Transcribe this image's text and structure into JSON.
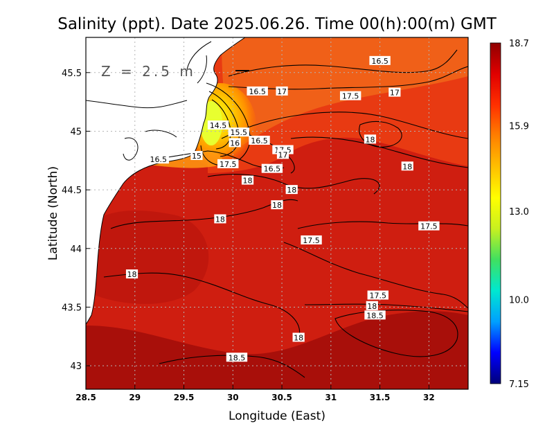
{
  "chart_data": {
    "type": "heatmap",
    "title": "Salinity (ppt). Date 2025.06.26. Time 00(h):00(m) GMT",
    "xlabel": "Longitude (East)",
    "ylabel": "Latitude (North)",
    "depth_label": "Z = 2.5 m",
    "xlim": [
      28.5,
      32.4
    ],
    "ylim": [
      42.8,
      45.8
    ],
    "x_ticks": [
      {
        "value": 28.5,
        "label": "28.5"
      },
      {
        "value": 29,
        "label": "29"
      },
      {
        "value": 29.5,
        "label": "29.5"
      },
      {
        "value": 30,
        "label": "30"
      },
      {
        "value": 30.5,
        "label": "30.5"
      },
      {
        "value": 31,
        "label": "31"
      },
      {
        "value": 31.5,
        "label": "31.5"
      },
      {
        "value": 32,
        "label": "32"
      }
    ],
    "y_ticks": [
      {
        "value": 43,
        "label": "43"
      },
      {
        "value": 43.5,
        "label": "43.5"
      },
      {
        "value": 44,
        "label": "44"
      },
      {
        "value": 44.5,
        "label": "44.5"
      },
      {
        "value": 45,
        "label": "45"
      },
      {
        "value": 45.5,
        "label": "45.5"
      }
    ],
    "grid": true,
    "colorbar": {
      "min": 7.15,
      "max": 18.7,
      "ticks": [
        {
          "value": 18.7,
          "label": "18.7"
        },
        {
          "value": 15.9,
          "label": "15.9"
        },
        {
          "value": 13.0,
          "label": "13.0"
        },
        {
          "value": 10.0,
          "label": "10.0"
        },
        {
          "value": 7.15,
          "label": "7.15"
        }
      ],
      "colors": [
        "#00007a",
        "#0000ff",
        "#00a0ff",
        "#00e8d0",
        "#40e060",
        "#c8f020",
        "#ffff00",
        "#ffc000",
        "#ff8000",
        "#ff3000",
        "#e00000",
        "#900000"
      ]
    },
    "contour_labels": [
      {
        "text": "16.5",
        "lon": 31.5,
        "lat": 45.6
      },
      {
        "text": "16.5",
        "lon": 30.25,
        "lat": 45.34
      },
      {
        "text": "17",
        "lon": 30.5,
        "lat": 45.34
      },
      {
        "text": "17.5",
        "lon": 31.2,
        "lat": 45.3
      },
      {
        "text": "17",
        "lon": 31.65,
        "lat": 45.33
      },
      {
        "text": "14.5",
        "lon": 29.85,
        "lat": 45.05
      },
      {
        "text": "15.5",
        "lon": 30.06,
        "lat": 44.99
      },
      {
        "text": "16",
        "lon": 30.02,
        "lat": 44.9
      },
      {
        "text": "16.5",
        "lon": 30.27,
        "lat": 44.92
      },
      {
        "text": "17.5",
        "lon": 30.51,
        "lat": 44.84
      },
      {
        "text": "17",
        "lon": 30.51,
        "lat": 44.8
      },
      {
        "text": "16.5",
        "lon": 29.24,
        "lat": 44.76
      },
      {
        "text": "15",
        "lon": 29.63,
        "lat": 44.79
      },
      {
        "text": "17.5",
        "lon": 29.95,
        "lat": 44.72
      },
      {
        "text": "16.5",
        "lon": 30.4,
        "lat": 44.68
      },
      {
        "text": "18",
        "lon": 31.4,
        "lat": 44.93
      },
      {
        "text": "18",
        "lon": 31.78,
        "lat": 44.7
      },
      {
        "text": "18",
        "lon": 30.15,
        "lat": 44.58
      },
      {
        "text": "18",
        "lon": 30.6,
        "lat": 44.5
      },
      {
        "text": "18",
        "lon": 30.45,
        "lat": 44.37
      },
      {
        "text": "18",
        "lon": 29.87,
        "lat": 44.25
      },
      {
        "text": "17.5",
        "lon": 32.0,
        "lat": 44.19
      },
      {
        "text": "17.5",
        "lon": 30.8,
        "lat": 44.07
      },
      {
        "text": "18",
        "lon": 28.97,
        "lat": 43.78
      },
      {
        "text": "17.5",
        "lon": 31.48,
        "lat": 43.6
      },
      {
        "text": "18",
        "lon": 31.42,
        "lat": 43.51
      },
      {
        "text": "18.5",
        "lon": 31.45,
        "lat": 43.43
      },
      {
        "text": "18",
        "lon": 30.67,
        "lat": 43.24
      },
      {
        "text": "18.5",
        "lon": 30.04,
        "lat": 43.07
      }
    ]
  }
}
